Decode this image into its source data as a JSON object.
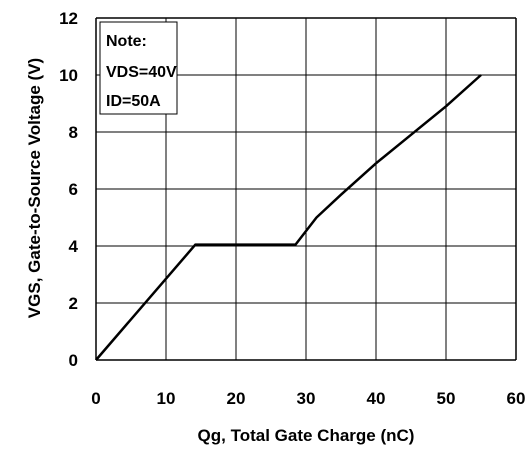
{
  "chart_data": {
    "type": "line",
    "xlabel": "Qg, Total Gate Charge (nC)",
    "ylabel": "VGS, Gate-to-Source Voltage (V)",
    "xlim": [
      0,
      60
    ],
    "ylim": [
      0,
      12
    ],
    "x_ticks": [
      "0",
      "10",
      "20",
      "30",
      "40",
      "50",
      "60"
    ],
    "y_ticks": [
      "0",
      "2",
      "4",
      "6",
      "8",
      "10",
      "12"
    ],
    "grid": true,
    "series": [
      {
        "x": [
          0,
          14.2,
          28.5,
          31.5,
          35,
          40,
          45,
          50,
          55
        ],
        "y": [
          0,
          4.05,
          4.05,
          5.0,
          5.8,
          6.9,
          7.9,
          8.9,
          10.0
        ]
      }
    ],
    "annotation": {
      "lines": [
        "Note:",
        "VDS=40V",
        "ID=50A"
      ]
    },
    "colors": {
      "line": "#000000",
      "grid": "#000000",
      "background": "#ffffff"
    }
  }
}
